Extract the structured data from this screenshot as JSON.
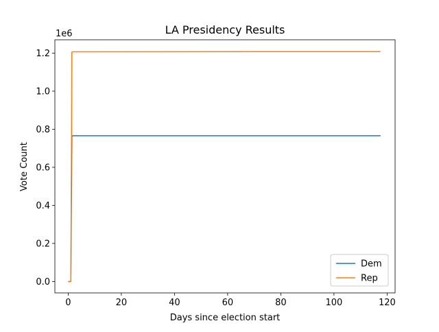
{
  "chart_data": {
    "type": "line",
    "title": "LA Presidency Results",
    "xlabel": "Days since election start",
    "ylabel": "Vote Count",
    "y_offset_label": "1e6",
    "xlim": [
      -5,
      123
    ],
    "ylim": [
      -0.06,
      1.27
    ],
    "x_ticks": [
      0,
      20,
      40,
      60,
      80,
      100,
      120
    ],
    "x_tick_labels": [
      "0",
      "20",
      "40",
      "60",
      "80",
      "100",
      "120"
    ],
    "y_ticks": [
      0.0,
      0.2,
      0.4,
      0.6,
      0.8,
      1.0,
      1.2
    ],
    "y_tick_labels": [
      "0.0",
      "0.2",
      "0.4",
      "0.6",
      "0.8",
      "1.0",
      "1.2"
    ],
    "y_scale_factor": 1000000,
    "grid": false,
    "legend_position": "lower right",
    "series": [
      {
        "name": "Dem",
        "color": "#1f77b4",
        "x": [
          0,
          1.0,
          1.4,
          2.0,
          117.5
        ],
        "y": [
          0,
          0,
          0.765,
          0.766,
          0.766
        ]
      },
      {
        "name": "Rep",
        "color": "#ff7f0e",
        "x": [
          0,
          1.0,
          1.4,
          2.0,
          117.5
        ],
        "y": [
          0,
          0,
          1.205,
          1.207,
          1.208
        ]
      }
    ]
  }
}
